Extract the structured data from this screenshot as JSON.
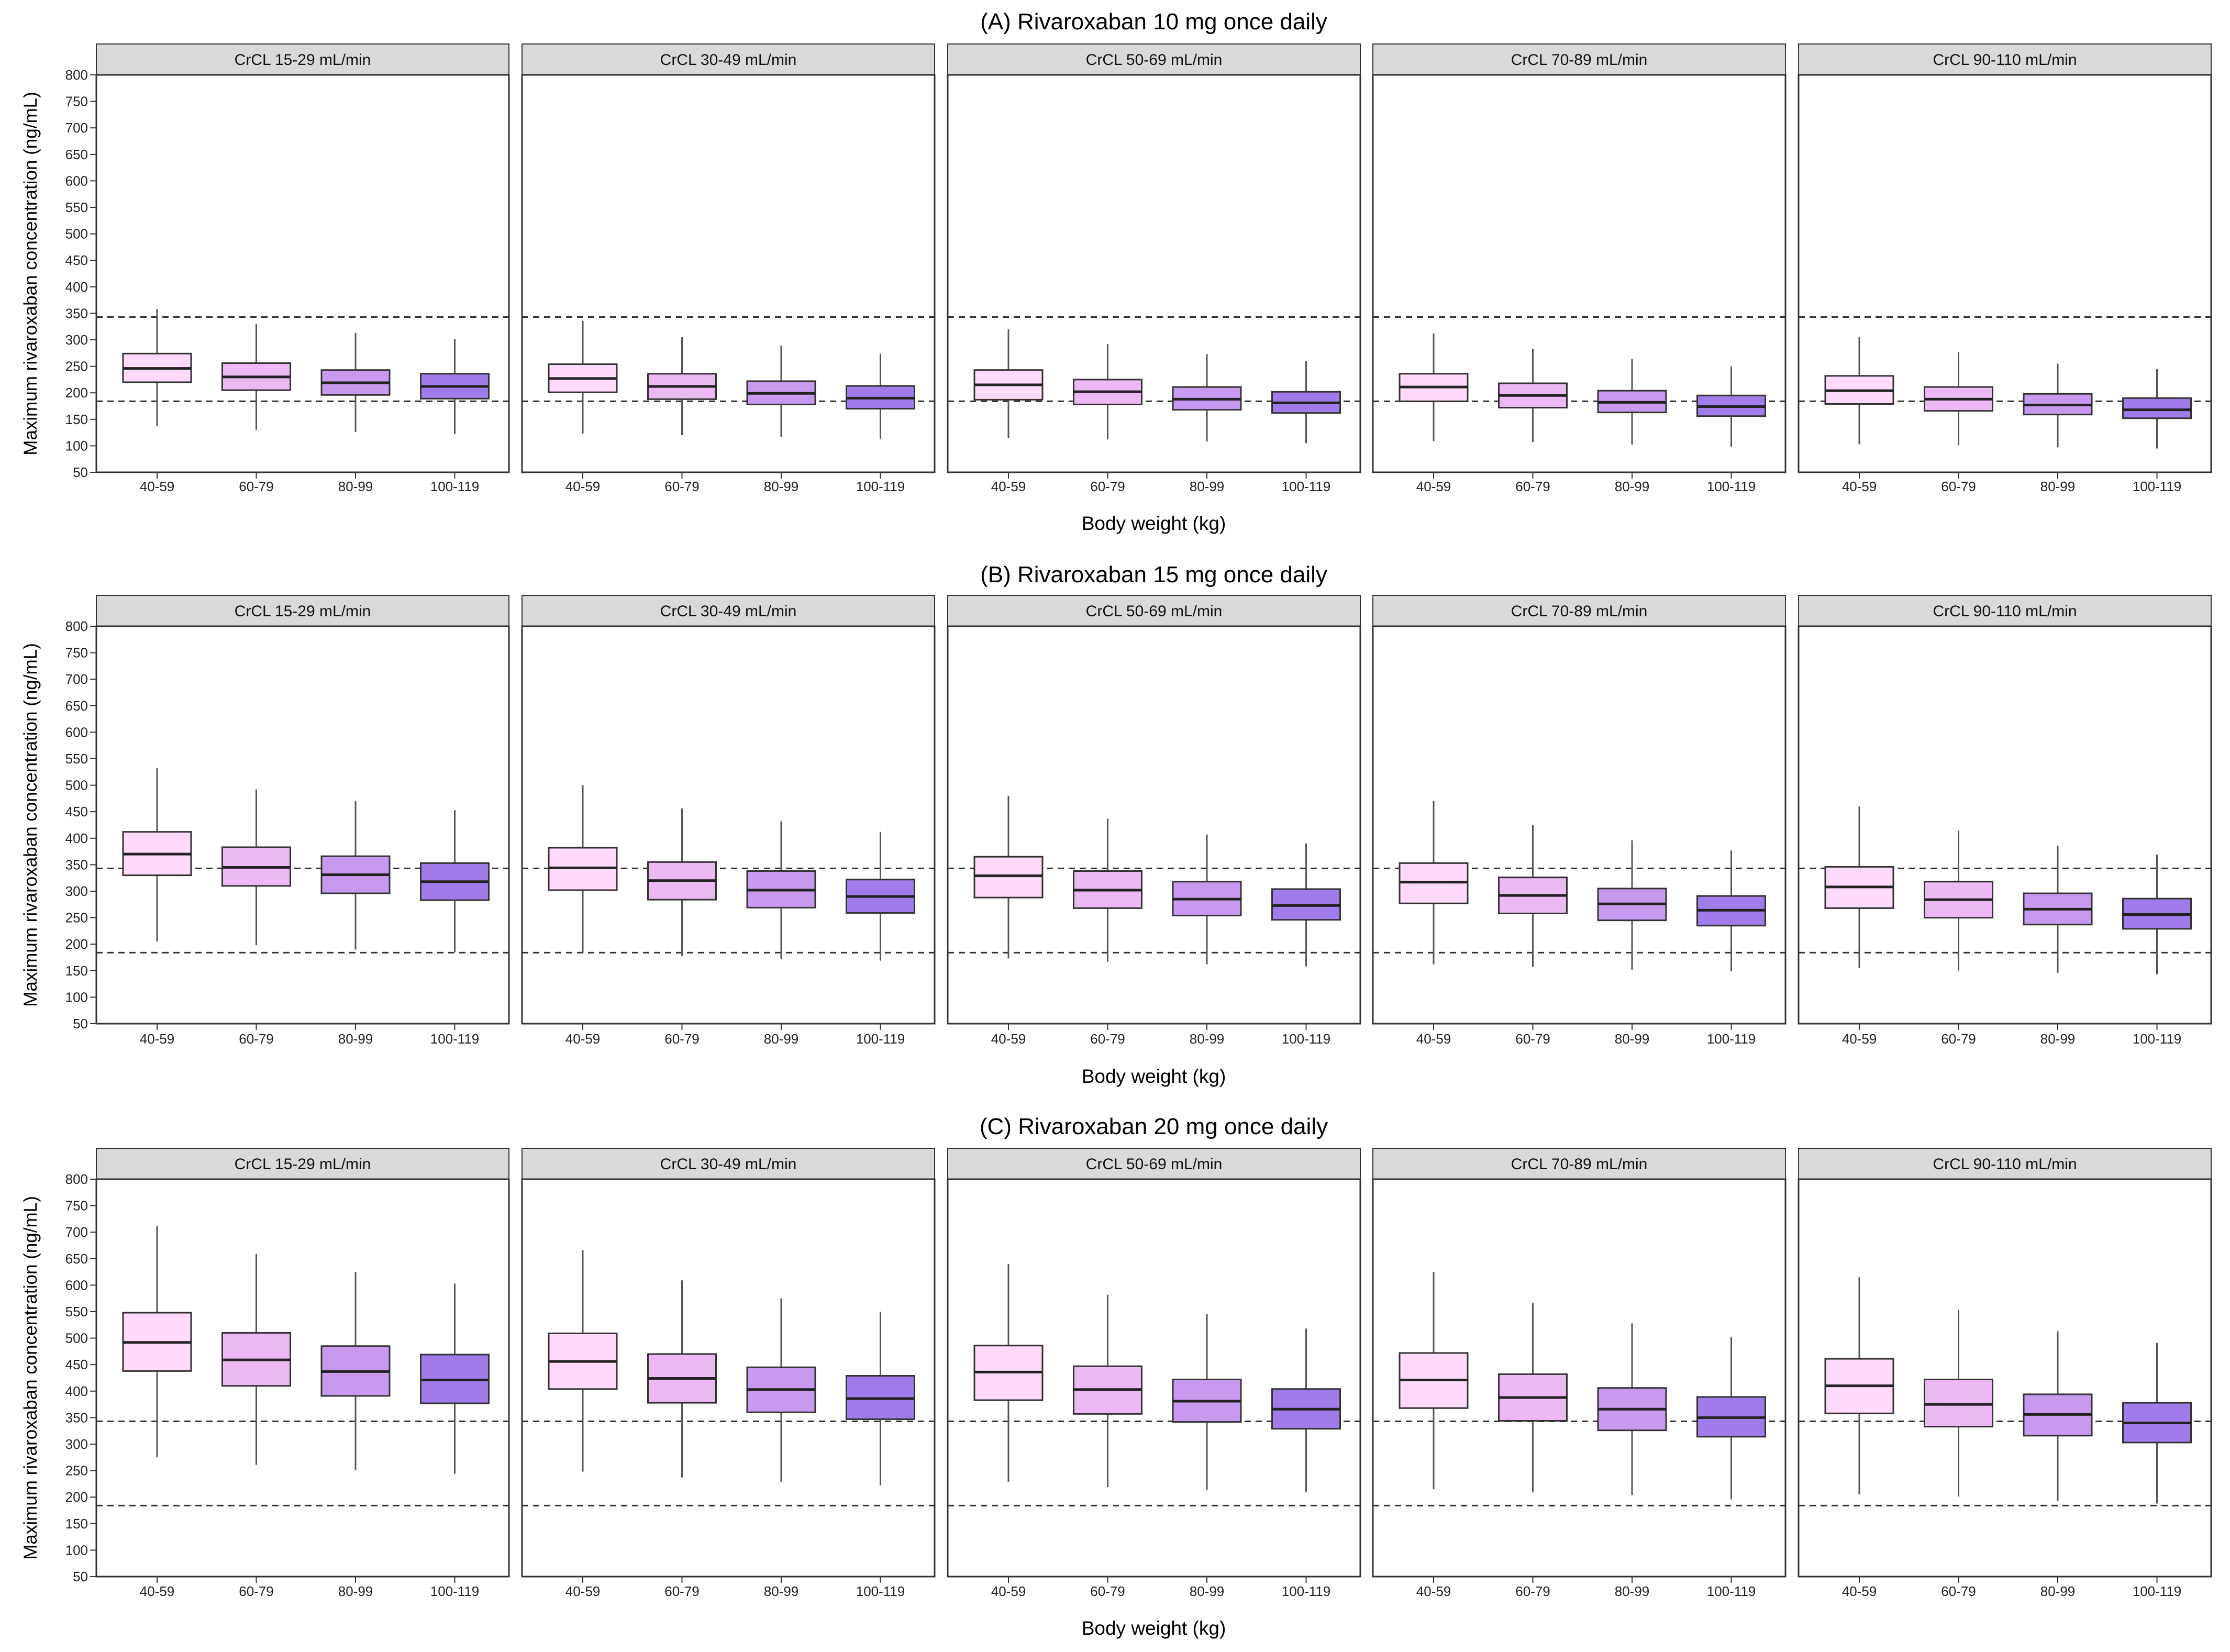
{
  "chart_data": {
    "type": "boxplot",
    "ylabel": "Maximum rivaroxaban concentration (ng/mL)",
    "xlabel": "Body weight (kg)",
    "ylim": [
      50,
      800
    ],
    "yticks": [
      50,
      100,
      150,
      200,
      250,
      300,
      350,
      400,
      450,
      500,
      550,
      600,
      650,
      700,
      750,
      800
    ],
    "reference_lines": [
      184,
      343
    ],
    "categories": [
      "40-59",
      "60-79",
      "80-99",
      "100-119"
    ],
    "colors": [
      "#FFDAFA",
      "#EDB9F4",
      "#C89AEF",
      "#A07BEA"
    ],
    "panels": [
      "CrCL 15-29 mL/min",
      "CrCL 30-49 mL/min",
      "CrCL 50-69 mL/min",
      "CrCL 70-89 mL/min",
      "CrCL 90-110 mL/min"
    ],
    "rows": [
      {
        "title": "(A) Rivaroxaban 10 mg once daily",
        "data": [
          [
            [
              137,
              220,
              246,
              274,
              358
            ],
            [
              130,
              205,
              230,
              256,
              330
            ],
            [
              126,
              196,
              219,
              243,
              313
            ],
            [
              122,
              189,
              212,
              236,
              302
            ]
          ],
          [
            [
              123,
              201,
              227,
              254,
              336
            ],
            [
              120,
              188,
              212,
              236,
              305
            ],
            [
              117,
              178,
              199,
              222,
              289
            ],
            [
              113,
              170,
              190,
              213,
              274
            ]
          ],
          [
            [
              115,
              187,
              215,
              243,
              320
            ],
            [
              112,
              178,
              202,
              225,
              292
            ],
            [
              108,
              168,
              188,
              211,
              273
            ],
            [
              105,
              162,
              181,
              202,
              260
            ]
          ],
          [
            [
              109,
              184,
              211,
              236,
              312
            ],
            [
              107,
              172,
              195,
              218,
              283
            ],
            [
              102,
              163,
              182,
              204,
              264
            ],
            [
              98,
              156,
              174,
              195,
              250
            ]
          ],
          [
            [
              103,
              179,
              204,
              232,
              305
            ],
            [
              101,
              166,
              188,
              211,
              277
            ],
            [
              97,
              159,
              177,
              198,
              255
            ],
            [
              95,
              152,
              168,
              190,
              245
            ]
          ]
        ]
      },
      {
        "title": "(B) Rivaroxaban 15 mg once daily",
        "data": [
          [
            [
              205,
              330,
              370,
              412,
              532
            ],
            [
              198,
              310,
              345,
              383,
              492
            ],
            [
              190,
              296,
              331,
              366,
              470
            ],
            [
              185,
              283,
              318,
              353,
              453
            ]
          ],
          [
            [
              184,
              302,
              344,
              382,
              500
            ],
            [
              178,
              284,
              320,
              355,
              456
            ],
            [
              172,
              269,
              302,
              338,
              432
            ],
            [
              169,
              259,
              290,
              322,
              412
            ]
          ],
          [
            [
              173,
              288,
              329,
              365,
              480
            ],
            [
              167,
              268,
              302,
              338,
              437
            ],
            [
              162,
              254,
              285,
              318,
              407
            ],
            [
              158,
              246,
              273,
              304,
              390
            ]
          ],
          [
            [
              162,
              277,
              317,
              353,
              470
            ],
            [
              157,
              258,
              292,
              326,
              425
            ],
            [
              152,
              245,
              276,
              305,
              396
            ],
            [
              149,
              235,
              264,
              291,
              377
            ]
          ],
          [
            [
              155,
              268,
              308,
              346,
              460
            ],
            [
              150,
              250,
              284,
              318,
              414
            ],
            [
              146,
              237,
              266,
              296,
              386
            ],
            [
              143,
              229,
              256,
              286,
              369
            ]
          ]
        ]
      },
      {
        "title": "(C) Rivaroxaban 20 mg once daily",
        "data": [
          [
            [
              275,
              438,
              492,
              548,
              712
            ],
            [
              261,
              410,
              459,
              510,
              659
            ],
            [
              251,
              391,
              437,
              485,
              625
            ],
            [
              244,
              377,
              421,
              469,
              603
            ]
          ],
          [
            [
              248,
              404,
              456,
              509,
              666
            ],
            [
              237,
              378,
              424,
              470,
              609
            ],
            [
              229,
              360,
              403,
              445,
              575
            ],
            [
              222,
              347,
              386,
              429,
              550
            ]
          ],
          [
            [
              229,
              383,
              436,
              486,
              640
            ],
            [
              219,
              357,
              403,
              447,
              582
            ],
            [
              213,
              342,
              381,
              422,
              545
            ],
            [
              210,
              329,
              366,
              404,
              518
            ]
          ],
          [
            [
              215,
              368,
              421,
              472,
              625
            ],
            [
              209,
              344,
              388,
              432,
              566
            ],
            [
              204,
              326,
              366,
              406,
              528
            ],
            [
              196,
              314,
              350,
              389,
              502
            ]
          ],
          [
            [
              205,
              358,
              410,
              461,
              615
            ],
            [
              201,
              333,
              375,
              422,
              554
            ],
            [
              193,
              316,
              356,
              394,
              513
            ],
            [
              188,
              303,
              340,
              378,
              491
            ]
          ]
        ]
      }
    ]
  }
}
